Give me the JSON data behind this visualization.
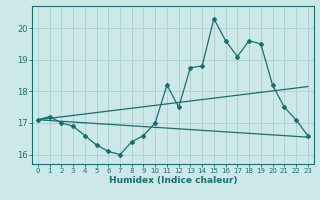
{
  "title": "",
  "xlabel": "Humidex (Indice chaleur)",
  "ylabel": "",
  "background_color": "#cde8e8",
  "grid_color": "#aad0d0",
  "line_color": "#1a6e6e",
  "x_data": [
    0,
    1,
    2,
    3,
    4,
    5,
    6,
    7,
    8,
    9,
    10,
    11,
    12,
    13,
    14,
    15,
    16,
    17,
    18,
    19,
    20,
    21,
    22,
    23
  ],
  "y_main": [
    17.1,
    17.2,
    17.0,
    16.9,
    16.6,
    16.3,
    16.1,
    16.0,
    16.4,
    16.6,
    17.0,
    18.2,
    17.5,
    18.75,
    18.8,
    20.3,
    19.6,
    19.1,
    19.6,
    19.5,
    18.2,
    17.5,
    17.1,
    16.6
  ],
  "ylim": [
    15.7,
    20.7
  ],
  "xlim": [
    -0.5,
    23.5
  ],
  "yticks": [
    16,
    17,
    18,
    19,
    20
  ],
  "xticks": [
    0,
    1,
    2,
    3,
    4,
    5,
    6,
    7,
    8,
    9,
    10,
    11,
    12,
    13,
    14,
    15,
    16,
    17,
    18,
    19,
    20,
    21,
    22,
    23
  ],
  "trend_upper_start": 17.1,
  "trend_upper_end": 18.15,
  "trend_lower_start": 17.1,
  "trend_lower_end": 16.55
}
